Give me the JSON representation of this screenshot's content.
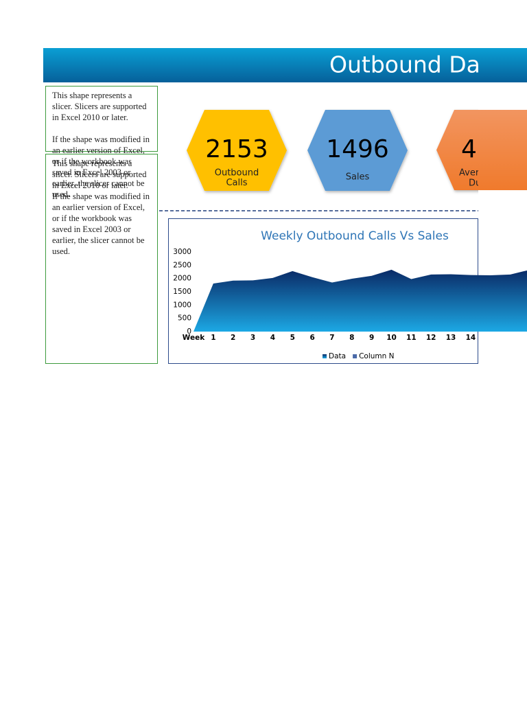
{
  "header": {
    "title": "Outbound Da"
  },
  "slicers": [
    {
      "paragraphs": [
        "This shape represents a slicer. Slicers are supported in Excel 2010 or later.",
        "If the shape was modified in an earlier version of Excel, or if the workbook was saved in Excel 2003 or earlier, the slicer cannot be used."
      ]
    },
    {
      "paragraphs": [
        "This shape represents a slicer. Slicers are supported in Excel 2010 or later.",
        "If the shape was modified in an earlier version of Excel, or if the workbook was saved in Excel 2003 or earlier, the slicer cannot be used."
      ]
    }
  ],
  "kpis": [
    {
      "value": 2153,
      "label": [
        "Outbound",
        "Calls"
      ],
      "color": "#FFC000"
    },
    {
      "value": 1496,
      "label": [
        "Sales"
      ],
      "color": "#5B9BD5"
    },
    {
      "value": 4,
      "label": [
        "Aver",
        "Du"
      ],
      "color": "#F0843C"
    }
  ],
  "chart_data": {
    "type": "area",
    "title": "Weekly Outbound Calls Vs Sales",
    "categories": [
      "Week",
      "1",
      "2",
      "3",
      "4",
      "5",
      "6",
      "7",
      "8",
      "9",
      "10",
      "11",
      "12",
      "13",
      "14",
      null,
      null,
      null
    ],
    "series": [
      {
        "name": "Data",
        "color": "#0b3a7e",
        "values": [
          0,
          1810,
          1920,
          1930,
          2020,
          2280,
          2050,
          1850,
          1990,
          2100,
          2330,
          1980,
          2150,
          2160,
          2130,
          2120,
          2150,
          2330
        ]
      },
      {
        "name": "Column N",
        "color": "#4a6aa8",
        "values": [
          null,
          null,
          null,
          null,
          null,
          null,
          null,
          null,
          null,
          null,
          null,
          null,
          null,
          null,
          null,
          null,
          null,
          null
        ]
      }
    ],
    "ylim": [
      0,
      3000
    ],
    "yticks": [
      0,
      500,
      1000,
      1500,
      2000,
      2500,
      3000
    ],
    "grid": false
  }
}
